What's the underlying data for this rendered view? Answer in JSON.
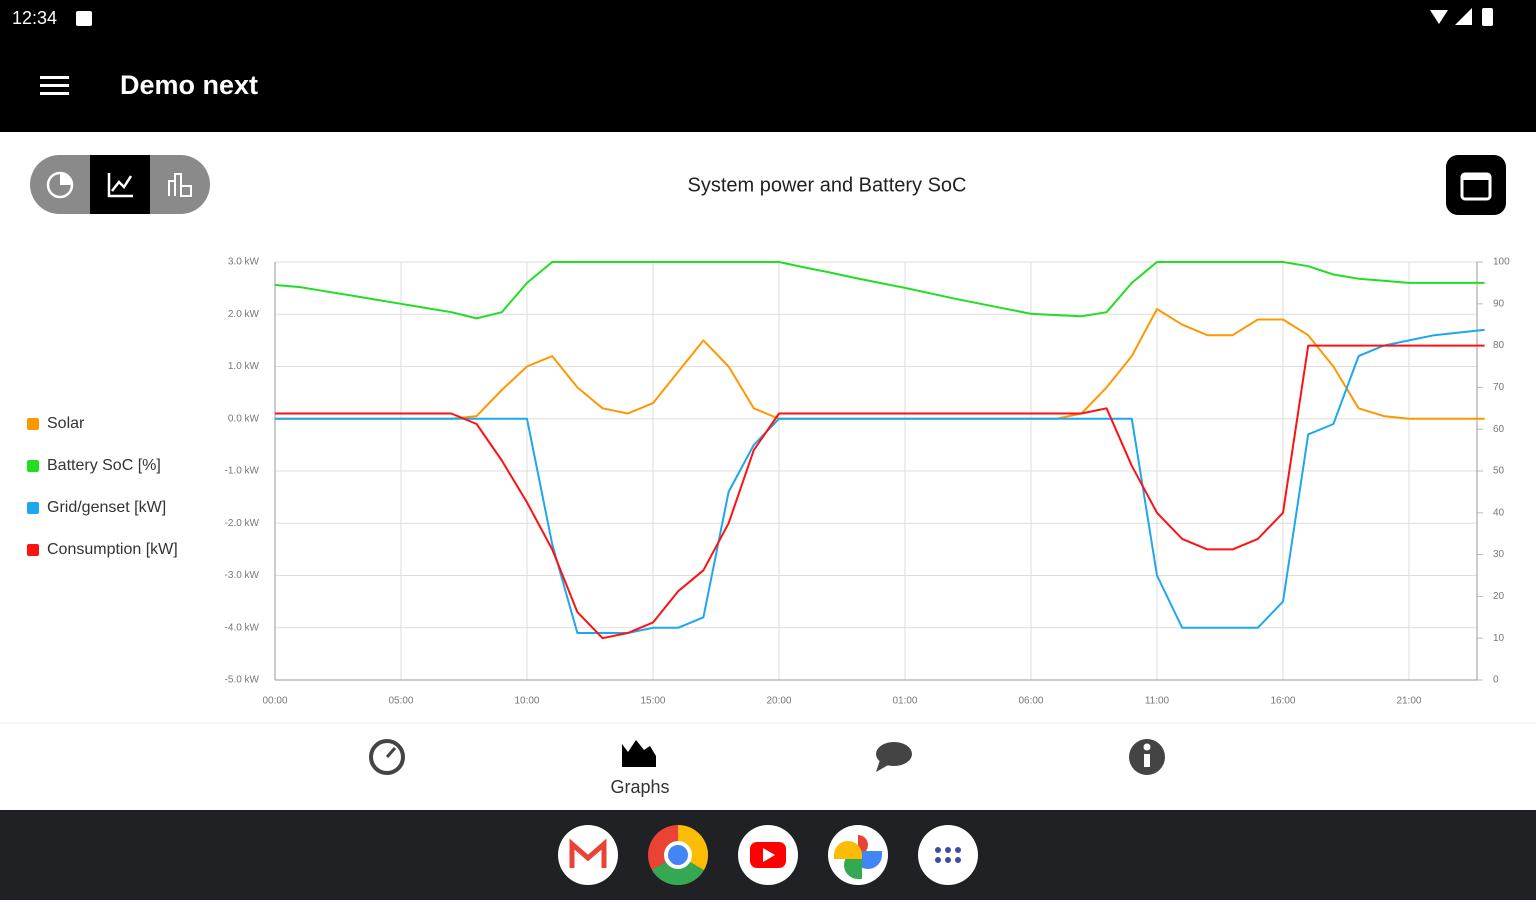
{
  "status_bar": {
    "time": "12:34"
  },
  "app_bar": {
    "title": "Demo next"
  },
  "chart_data": {
    "type": "line",
    "title": "System power and Battery SoC",
    "x": [
      0,
      1,
      2,
      3,
      4,
      5,
      6,
      7,
      8,
      9,
      10,
      11,
      12,
      13,
      14,
      15,
      16,
      17,
      18,
      19,
      20,
      21,
      22,
      23,
      24,
      25,
      26,
      27,
      28,
      29,
      30,
      31,
      32,
      33,
      34,
      35,
      36,
      37,
      38,
      39,
      40,
      41,
      42,
      43,
      44,
      45,
      46,
      47,
      48
    ],
    "xlim": [
      0,
      47.7
    ],
    "xticks": [
      {
        "value": 0,
        "label": "00:00"
      },
      {
        "value": 5,
        "label": "05:00"
      },
      {
        "value": 10,
        "label": "10:00"
      },
      {
        "value": 15,
        "label": "15:00"
      },
      {
        "value": 20,
        "label": "20:00"
      },
      {
        "value": 25,
        "label": "01:00"
      },
      {
        "value": 30,
        "label": "06:00"
      },
      {
        "value": 35,
        "label": "11:00"
      },
      {
        "value": 40,
        "label": "16:00"
      },
      {
        "value": 45,
        "label": "21:00"
      }
    ],
    "ylim": [
      -5,
      3
    ],
    "yticks": [
      {
        "value": -5,
        "label": "-5.0 kW"
      },
      {
        "value": -4,
        "label": "-4.0 kW"
      },
      {
        "value": -3,
        "label": "-3.0 kW"
      },
      {
        "value": -2,
        "label": "-2.0 kW"
      },
      {
        "value": -1,
        "label": "-1.0 kW"
      },
      {
        "value": 0,
        "label": "0.0 kW"
      },
      {
        "value": 1,
        "label": "1.0 kW"
      },
      {
        "value": 2,
        "label": "2.0 kW"
      },
      {
        "value": 3,
        "label": "3.0 kW"
      }
    ],
    "y2lim": [
      0,
      100
    ],
    "y2ticks": [
      0,
      10,
      20,
      30,
      40,
      50,
      60,
      70,
      80,
      90,
      100
    ],
    "grid": true,
    "legend": "left",
    "series": [
      {
        "name": "Solar",
        "color": "#ff9800",
        "values": [
          0,
          0,
          0,
          0,
          0,
          0,
          0,
          0,
          0.05,
          0.55,
          1.0,
          1.2,
          0.6,
          0.2,
          0.1,
          0.3,
          0.9,
          1.5,
          1.0,
          0.2,
          0,
          0,
          0,
          0,
          0,
          0,
          0,
          0,
          0,
          0,
          0,
          0,
          0.1,
          0.6,
          1.2,
          2.1,
          1.8,
          1.6,
          1.6,
          1.9,
          1.9,
          1.6,
          1.0,
          0.2,
          0.05,
          0,
          0,
          0,
          0
        ]
      },
      {
        "name": "Battery SoC [%]",
        "color": "#22dd22",
        "axis": "y2",
        "values": [
          94.5,
          94,
          93,
          92,
          91,
          90,
          89,
          88,
          86.5,
          88,
          95,
          100,
          100,
          100,
          100,
          100,
          100,
          100,
          100,
          100,
          100,
          98.7,
          97.5,
          96.2,
          95,
          93.8,
          92.5,
          91.2,
          90,
          88.8,
          87.6,
          87.3,
          87,
          88,
          95,
          100,
          100,
          100,
          100,
          100,
          100,
          99,
          97,
          96,
          95.5,
          95,
          95,
          95,
          95
        ]
      },
      {
        "name": "Grid/genset [kW]",
        "color": "#1ea7ee",
        "values": [
          0,
          0,
          0,
          0,
          0,
          0,
          0,
          0,
          0,
          0,
          0,
          -2.4,
          -4.1,
          -4.1,
          -4.1,
          -4.0,
          -4.0,
          -3.8,
          -1.4,
          -0.5,
          0,
          0,
          0,
          0,
          0,
          0,
          0,
          0,
          0,
          0,
          0,
          0,
          0,
          0,
          0,
          -3.0,
          -4.0,
          -4.0,
          -4.0,
          -4.0,
          -3.5,
          -0.3,
          -0.1,
          1.2,
          1.4,
          1.5,
          1.6,
          1.65,
          1.7
        ]
      },
      {
        "name": "Consumption [kW]",
        "color": "#ff1111",
        "values": [
          0.1,
          0.1,
          0.1,
          0.1,
          0.1,
          0.1,
          0.1,
          0.1,
          -0.1,
          -0.8,
          -1.6,
          -2.5,
          -3.7,
          -4.2,
          -4.1,
          -3.9,
          -3.3,
          -2.9,
          -2.0,
          -0.6,
          0.1,
          0.1,
          0.1,
          0.1,
          0.1,
          0.1,
          0.1,
          0.1,
          0.1,
          0.1,
          0.1,
          0.1,
          0.1,
          0.2,
          -0.9,
          -1.8,
          -2.3,
          -2.5,
          -2.5,
          -2.3,
          -1.8,
          1.4,
          1.4,
          1.4,
          1.4,
          1.4,
          1.4,
          1.4,
          1.4
        ]
      }
    ]
  },
  "bottom_nav": {
    "active_label": "Graphs"
  }
}
